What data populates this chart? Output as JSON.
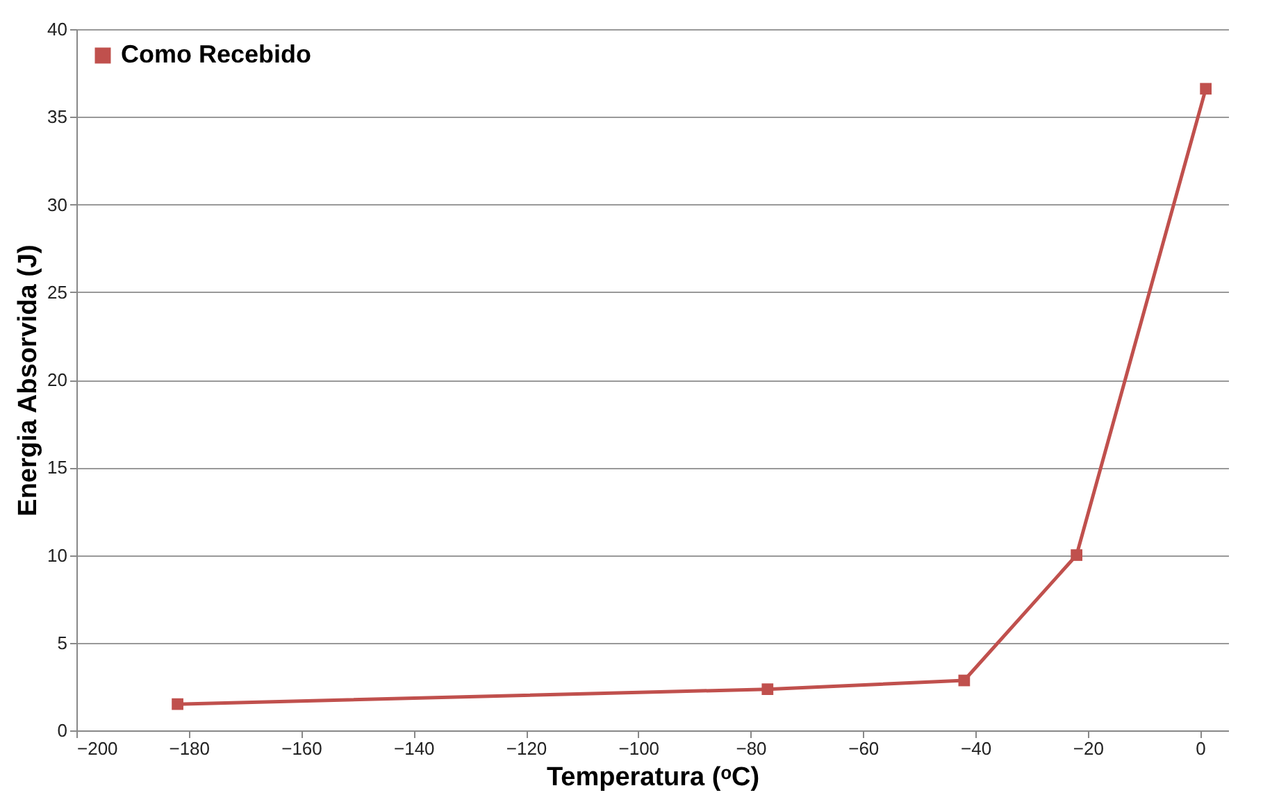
{
  "chart_data": {
    "type": "line",
    "xlabel": "Temperatura (ᵒC)",
    "ylabel": "Energia Absorvida (J)",
    "x": [
      -182,
      -77,
      -42,
      -22,
      1
    ],
    "series": [
      {
        "name": "Como Recebido",
        "color": "#c0504d",
        "values": [
          1.5,
          2.35,
          2.85,
          10.0,
          36.6
        ]
      }
    ],
    "xlim": [
      -200,
      5
    ],
    "xticks": [
      -200,
      -180,
      -160,
      -140,
      -120,
      -100,
      -80,
      -60,
      -40,
      -20,
      0
    ],
    "ylim": [
      0,
      40
    ],
    "yticks": [
      0,
      5,
      10,
      15,
      20,
      25,
      30,
      35,
      40
    ],
    "grid": "y",
    "legend": "top left",
    "marker": "square",
    "line_style": "solid"
  }
}
